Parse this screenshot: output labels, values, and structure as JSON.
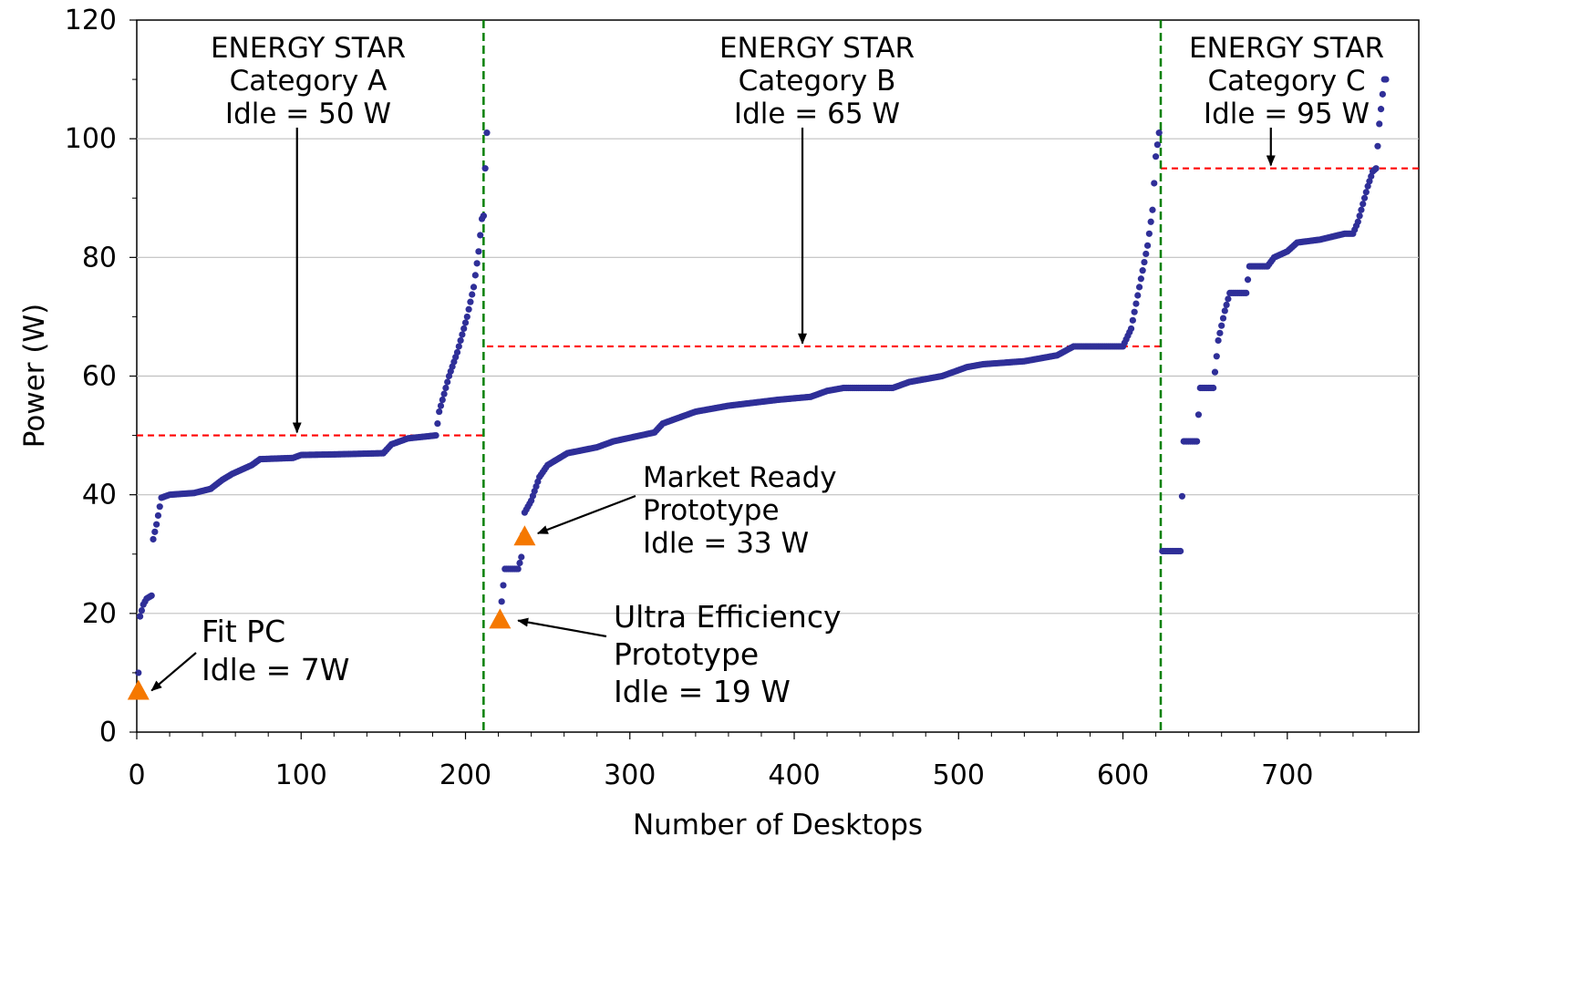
{
  "chart_data": {
    "type": "scatter",
    "title": "",
    "xlabel": "Number of Desktops",
    "ylabel": "Power (W)",
    "xlim": [
      0,
      780
    ],
    "ylim": [
      0,
      120
    ],
    "x_ticks": [
      0,
      100,
      200,
      300,
      400,
      500,
      600,
      700
    ],
    "y_ticks": [
      0,
      20,
      40,
      60,
      80,
      100,
      120
    ],
    "grid": "horizontal",
    "legend": "none",
    "colors": {
      "series": "#2f2f98",
      "threshold": "#ff0000",
      "divider": "#008000",
      "prototype": "#f57800",
      "grid": "#c0c0c0"
    },
    "series": [
      {
        "marker": "circle",
        "segments": [
          {
            "x_range": [
              1,
              211
            ],
            "y_points": [
              [
                1,
                10
              ],
              [
                2,
                19.5
              ],
              [
                4,
                21.5
              ],
              [
                6,
                22.5
              ],
              [
                9,
                23
              ],
              [
                10,
                32.5
              ],
              [
                12,
                35
              ],
              [
                15,
                39.5
              ],
              [
                20,
                40
              ],
              [
                35,
                40.3
              ],
              [
                45,
                41
              ],
              [
                52,
                42.5
              ],
              [
                58,
                43.5
              ],
              [
                62,
                44
              ],
              [
                70,
                45
              ],
              [
                75,
                46
              ],
              [
                95,
                46.2
              ],
              [
                100,
                46.7
              ],
              [
                120,
                46.8
              ],
              [
                150,
                47
              ],
              [
                155,
                48.5
              ],
              [
                165,
                49.5
              ],
              [
                182,
                50
              ],
              [
                184,
                54
              ],
              [
                190,
                60
              ],
              [
                195,
                64
              ],
              [
                201,
                70
              ],
              [
                205,
                75
              ],
              [
                208,
                81
              ],
              [
                210,
                86.5
              ],
              [
                211,
                87
              ]
            ]
          },
          {
            "x_range": [
              211,
              213
            ],
            "y_points": [
              [
                211,
                87
              ],
              [
                212,
                95
              ],
              [
                213,
                101
              ]
            ]
          },
          {
            "x_range": [
              222,
              622
            ],
            "y_points": [
              [
                222,
                22
              ],
              [
                224,
                27.5
              ],
              [
                232,
                27.5
              ],
              [
                234,
                29.5
              ],
              [
                236,
                37
              ],
              [
                240,
                39
              ],
              [
                245,
                43
              ],
              [
                250,
                45
              ],
              [
                262,
                47
              ],
              [
                280,
                48
              ],
              [
                290,
                49
              ],
              [
                315,
                50.5
              ],
              [
                320,
                52
              ],
              [
                340,
                54
              ],
              [
                360,
                55
              ],
              [
                390,
                56
              ],
              [
                410,
                56.5
              ],
              [
                420,
                57.5
              ],
              [
                430,
                58
              ],
              [
                460,
                58
              ],
              [
                470,
                59
              ],
              [
                490,
                60
              ],
              [
                505,
                61.5
              ],
              [
                515,
                62
              ],
              [
                540,
                62.5
              ],
              [
                560,
                63.5
              ],
              [
                570,
                65
              ],
              [
                600,
                65
              ],
              [
                605,
                68
              ],
              [
                610,
                75
              ],
              [
                615,
                82
              ],
              [
                618,
                88
              ],
              [
                620,
                97
              ],
              [
                622,
                101
              ],
              [
                624,
                105
              ]
            ]
          },
          {
            "x_range": [
              624,
              760
            ],
            "y_points": [
              [
                624,
                30.5
              ],
              [
                635,
                30.5
              ],
              [
                637,
                49
              ],
              [
                645,
                49
              ],
              [
                647,
                58
              ],
              [
                655,
                58
              ],
              [
                658,
                66
              ],
              [
                662,
                71
              ],
              [
                665,
                74
              ],
              [
                675,
                74
              ],
              [
                677,
                78.5
              ],
              [
                688,
                78.5
              ],
              [
                692,
                80
              ],
              [
                700,
                81
              ],
              [
                706,
                82.5
              ],
              [
                720,
                83
              ],
              [
                735,
                84
              ],
              [
                740,
                84
              ],
              [
                743,
                86
              ],
              [
                746,
                89
              ],
              [
                749,
                92
              ],
              [
                752,
                94.5
              ],
              [
                754,
                95
              ],
              [
                756,
                102.5
              ],
              [
                757,
                105
              ],
              [
                759,
                110
              ]
            ]
          }
        ]
      }
    ],
    "prototypes": [
      {
        "name": "Fit PC",
        "x": 1,
        "y": 7
      },
      {
        "name": "Ultra Efficiency Prototype",
        "x": 221,
        "y": 19
      },
      {
        "name": "Market Ready Prototype",
        "x": 236,
        "y": 33
      }
    ],
    "dividers": [
      211,
      623
    ],
    "thresholds": [
      {
        "category": "A",
        "y": 50,
        "x_range": [
          0,
          211
        ]
      },
      {
        "category": "B",
        "y": 65,
        "x_range": [
          213,
          623
        ]
      },
      {
        "category": "C",
        "y": 95,
        "x_range": [
          623,
          780
        ]
      }
    ],
    "annotations": {
      "cat_a": [
        "ENERGY STAR",
        "Category A",
        "Idle = 50 W"
      ],
      "cat_b": [
        "ENERGY STAR",
        "Category B",
        "Idle = 65 W"
      ],
      "cat_c": [
        "ENERGY STAR",
        "Category C",
        "Idle = 95 W"
      ],
      "fit_pc": [
        "Fit PC",
        "Idle = 7W"
      ],
      "market": [
        "Market Ready",
        "Prototype",
        "Idle = 33 W"
      ],
      "ultra": [
        "Ultra Efficiency",
        "Prototype",
        "Idle = 19 W"
      ]
    }
  }
}
